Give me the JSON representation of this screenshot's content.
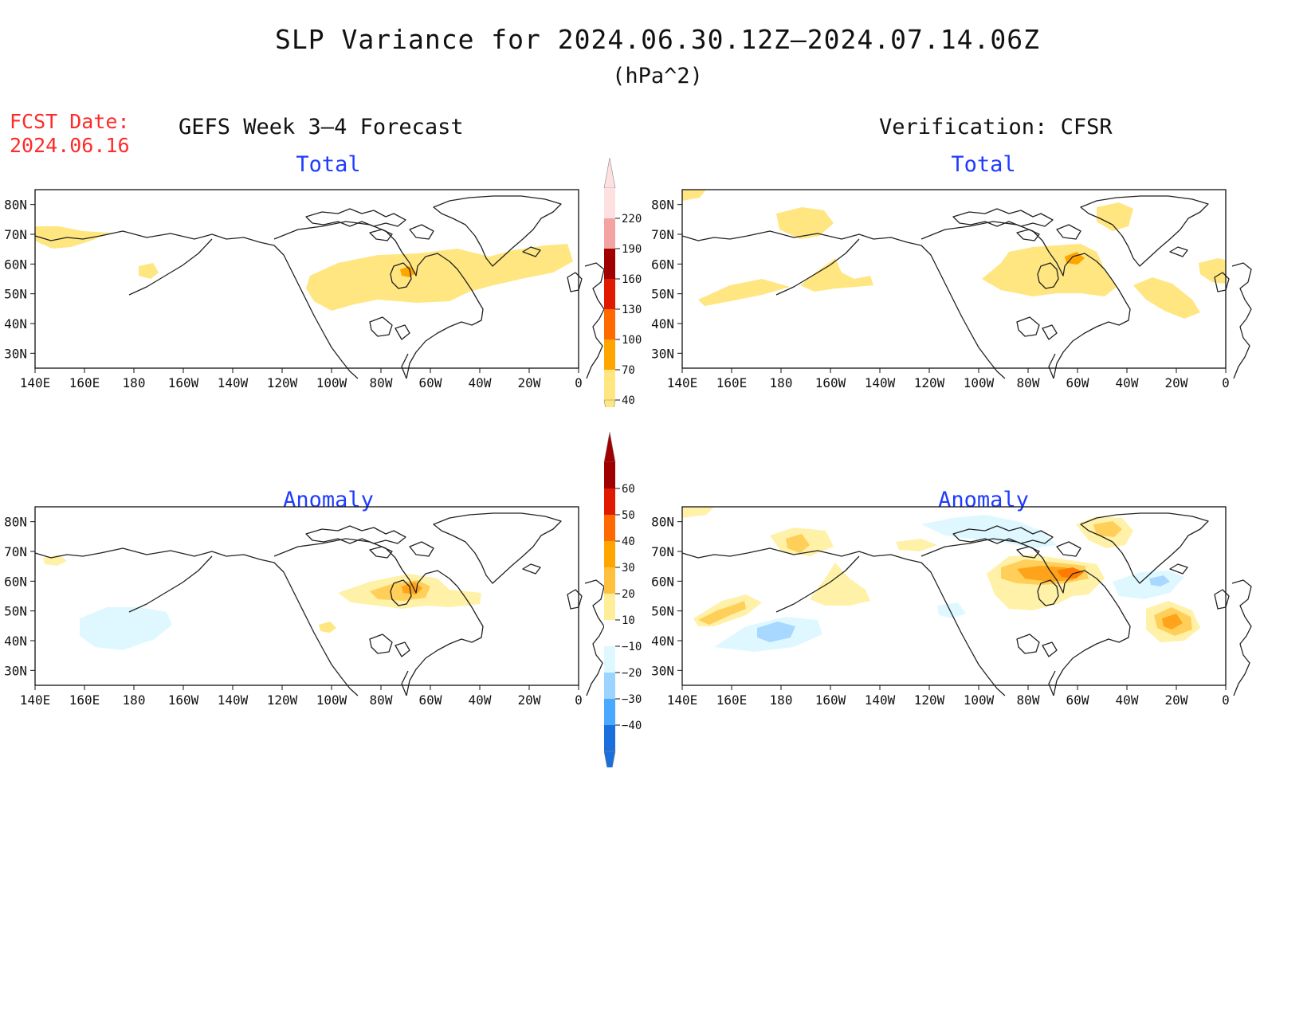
{
  "title": "SLP Variance for 2024.06.30.12Z–2024.07.14.06Z",
  "units": "(hPa^2)",
  "fcst_label": "FCST Date:",
  "fcst_date": "2024.06.16",
  "left_heading": "GEFS Week 3–4 Forecast",
  "right_heading": "Verification: CFSR",
  "panels": {
    "forecast_total": {
      "title": "Total"
    },
    "verification_total": {
      "title": "Total"
    },
    "forecast_anomaly": {
      "title": "Anomaly"
    },
    "verification_anomaly": {
      "title": "Anomaly"
    }
  },
  "axes": {
    "lon_labels": [
      "140E",
      "160E",
      "180",
      "160W",
      "140W",
      "120W",
      "100W",
      "80W",
      "60W",
      "40W",
      "20W",
      "0"
    ],
    "lat_labels": [
      "80N",
      "70N",
      "60N",
      "50N",
      "40N",
      "30N"
    ],
    "lat_range": [
      25,
      85
    ],
    "lon_range": [
      140,
      360
    ]
  },
  "colorbar_total": {
    "labels": [
      "220",
      "190",
      "160",
      "130",
      "100",
      "70",
      "40"
    ],
    "colors": [
      "#fde0e0",
      "#f4a3a3",
      "#a00000",
      "#e01a00",
      "#ff6a00",
      "#ffa500",
      "#ffe680"
    ]
  },
  "colorbar_anomaly": {
    "labels": [
      "60",
      "50",
      "40",
      "30",
      "20",
      "10",
      "−10",
      "−20",
      "−30",
      "−40"
    ],
    "colors": [
      "#a00000",
      "#e01a00",
      "#ff6a00",
      "#ffa500",
      "#ffc040",
      "#ffee99",
      "#ffffff",
      "#dff8ff",
      "#9ad4ff",
      "#4aa8ff",
      "#1a6fdc"
    ]
  },
  "colors": {
    "c10": "#fff1a8",
    "c20": "#ffcf5a",
    "c30": "#ffa31a",
    "c40": "#ff7a00",
    "n10": "#dff8ff",
    "n20": "#a8d8ff",
    "n30": "#5fb0ff",
    "t40": "#ffe680",
    "t70": "#ffa500"
  }
}
